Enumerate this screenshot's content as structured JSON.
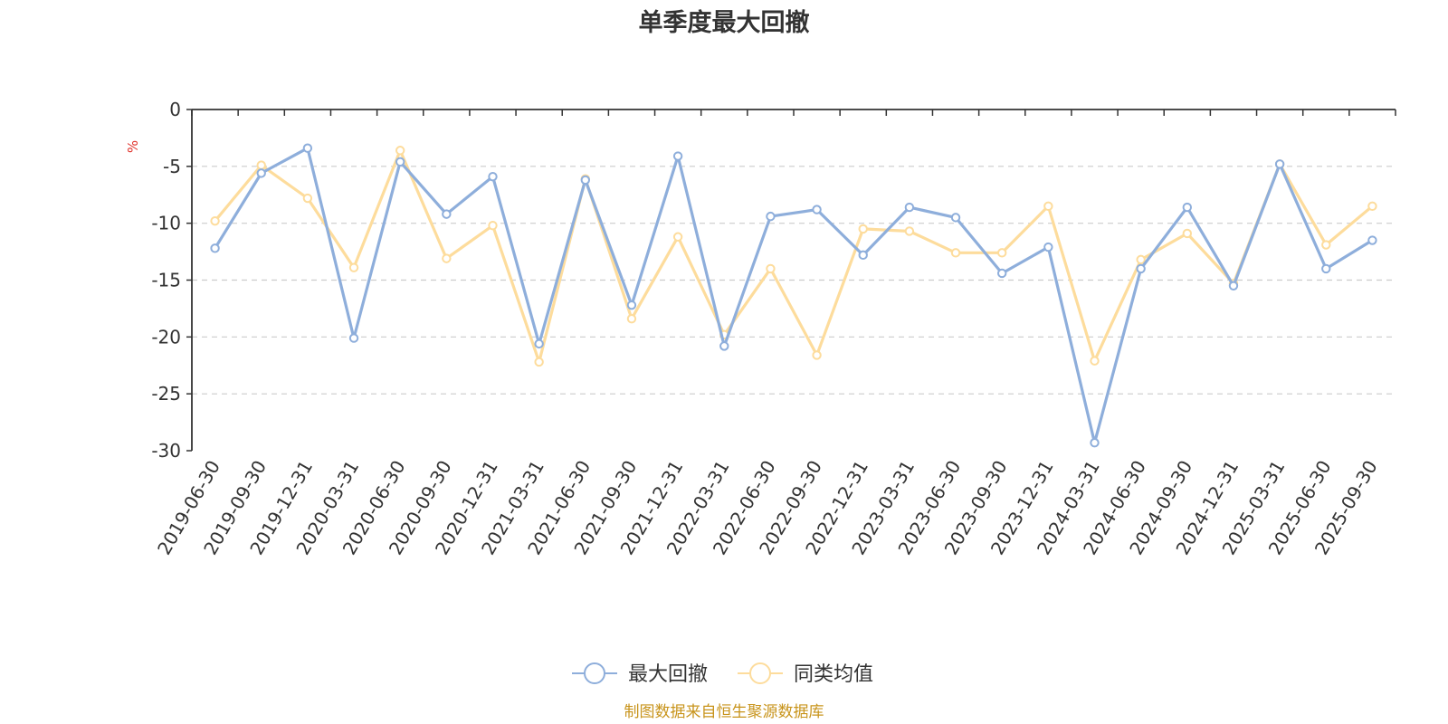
{
  "chart_data": {
    "type": "line",
    "title": "单季度最大回撤",
    "ylabel": "%",
    "ylim": [
      -30,
      0
    ],
    "yticks": [
      0,
      -5,
      -10,
      -15,
      -20,
      -25,
      -30
    ],
    "grid": true,
    "legend_position": "bottom",
    "categories": [
      "2019-06-30",
      "2019-09-30",
      "2019-12-31",
      "2020-03-31",
      "2020-06-30",
      "2020-09-30",
      "2020-12-31",
      "2021-03-31",
      "2021-06-30",
      "2021-09-30",
      "2021-12-31",
      "2022-03-31",
      "2022-06-30",
      "2022-09-30",
      "2022-12-31",
      "2023-03-31",
      "2023-06-30",
      "2023-09-30",
      "2023-12-31",
      "2024-03-31",
      "2024-06-30",
      "2024-09-30",
      "2024-12-31",
      "2025-03-31",
      "2025-06-30",
      "2025-09-30"
    ],
    "series": [
      {
        "name": "最大回撤",
        "color": "#8eaedb",
        "values": [
          -12.2,
          -5.6,
          -3.4,
          -20.1,
          -4.6,
          -9.2,
          -5.9,
          -20.6,
          -6.2,
          -17.2,
          -4.1,
          -20.8,
          -9.4,
          -8.8,
          -12.8,
          -8.6,
          -9.5,
          -14.4,
          -12.1,
          -29.3,
          -14.0,
          -8.6,
          -15.5,
          -4.8,
          -14.0,
          -11.5
        ]
      },
      {
        "name": "同类均值",
        "color": "#fddc9c",
        "values": [
          -9.8,
          -4.9,
          -7.8,
          -13.9,
          -3.6,
          -13.1,
          -10.2,
          -22.2,
          -6.1,
          -18.4,
          -11.2,
          -19.8,
          -14.0,
          -21.6,
          -10.5,
          -10.7,
          -12.6,
          -12.6,
          -8.5,
          -22.1,
          -13.2,
          -10.9,
          -15.3,
          -4.8,
          -11.9,
          -8.5
        ]
      }
    ],
    "source_note": "制图数据来自恒生聚源数据库",
    "colors": {
      "axis": "#333333",
      "grid": "#cccccc",
      "unit": "#e0322b",
      "source": "#c8941c"
    }
  }
}
